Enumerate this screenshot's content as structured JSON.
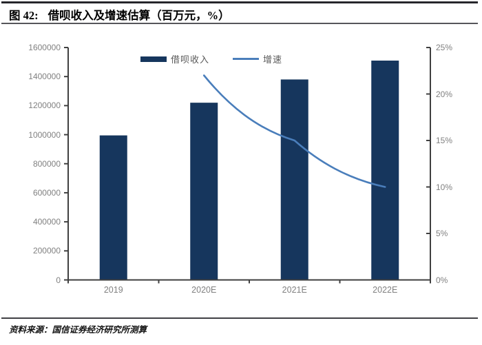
{
  "header": {
    "fig_label": "图 42:",
    "title": "借呗收入及增速估算（百万元，%）"
  },
  "footer": {
    "source": "资料来源：国信证券经济研究所测算"
  },
  "colors": {
    "bar": "#16365D",
    "line": "#4A7EBB",
    "axis": "#3F3F3F",
    "tick_label": "#808080",
    "legend_text": "#595959"
  },
  "chart_data": {
    "type": "bar",
    "title": "借呗收入及增速估算（百万元，%）",
    "categories": [
      "2019",
      "2020E",
      "2021E",
      "2022E"
    ],
    "series": [
      {
        "name": "借呗收入",
        "type": "bar",
        "axis": "left",
        "values": [
          995000,
          1220000,
          1380000,
          1510000
        ]
      },
      {
        "name": "增速",
        "type": "line",
        "axis": "right",
        "values": [
          null,
          22,
          15,
          10
        ]
      }
    ],
    "left_axis": {
      "min": 0,
      "max": 1600000,
      "step": 200000,
      "labels": [
        "0",
        "200000",
        "400000",
        "600000",
        "800000",
        "1000000",
        "1200000",
        "1400000",
        "1600000"
      ]
    },
    "right_axis": {
      "min": 0,
      "max": 25,
      "step": 5,
      "labels": [
        "0%",
        "5%",
        "10%",
        "15%",
        "20%",
        "25%"
      ]
    },
    "grid": false,
    "legend_position": "top-center"
  }
}
